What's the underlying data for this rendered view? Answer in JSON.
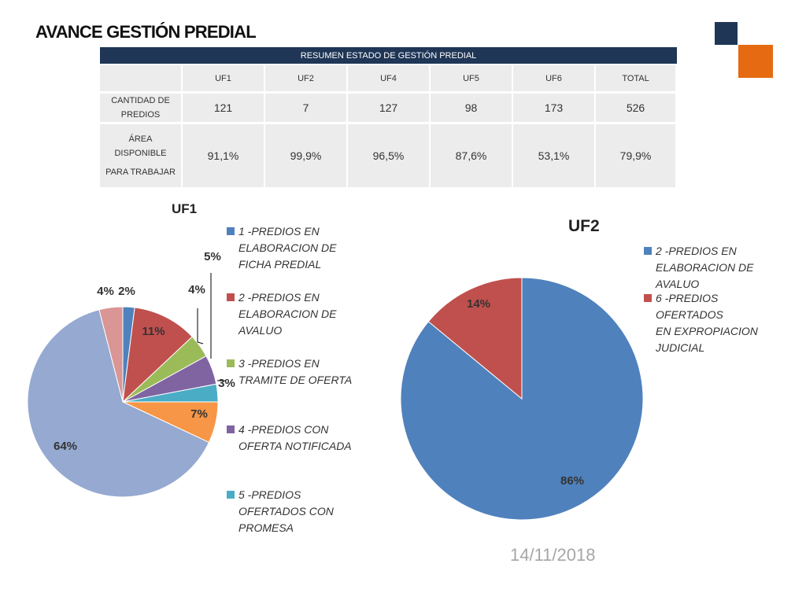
{
  "page": {
    "title": "AVANCE GESTIÓN PREDIAL",
    "date": "14/11/2018",
    "accent_colors": {
      "navy": "#1f3656",
      "orange": "#e56a12"
    }
  },
  "table": {
    "header": "RESUMEN ESTADO DE GESTIÓN PREDIAL",
    "columns": [
      "",
      "UF1",
      "UF2",
      "UF4",
      "UF5",
      "UF6",
      "TOTAL"
    ],
    "rows": [
      {
        "label_lines": [
          "CANTIDAD DE",
          "PREDIOS"
        ],
        "values": [
          "121",
          "7",
          "127",
          "98",
          "173",
          "526"
        ]
      },
      {
        "label_lines": [
          "ÁREA",
          "DISPONIBLE",
          "PARA TRABAJAR"
        ],
        "values": [
          "91,1%",
          "99,9%",
          "96,5%",
          "87,6%",
          "53,1%",
          "79,9%"
        ]
      }
    ]
  },
  "chart_data": [
    {
      "type": "pie",
      "title": "UF1",
      "slices": [
        {
          "value": 2,
          "label": "2%",
          "color": "#4f81bd"
        },
        {
          "value": 11,
          "label": "11%",
          "color": "#c0504d"
        },
        {
          "value": 4,
          "label": "4%",
          "color": "#9bbb59"
        },
        {
          "value": 5,
          "label": "5%",
          "color": "#8064a2"
        },
        {
          "value": 3,
          "label": "3%",
          "color": "#4bacc6"
        },
        {
          "value": 7,
          "label": "7%",
          "color": "#f79646"
        },
        {
          "value": 64,
          "label": "64%",
          "color": "#95a9d1"
        },
        {
          "value": 4,
          "label": "4%",
          "color": "#d99694"
        }
      ],
      "legend": [
        {
          "label_lines": [
            "1 -PREDIOS EN",
            "ELABORACION DE",
            "FICHA PREDIAL"
          ],
          "color": "#4f81bd"
        },
        {
          "label_lines": [
            "2 -PREDIOS EN",
            "ELABORACION DE",
            "AVALUO"
          ],
          "color": "#c0504d"
        },
        {
          "label_lines": [
            "3 -PREDIOS EN",
            "TRAMITE DE OFERTA"
          ],
          "color": "#9bbb59"
        },
        {
          "label_lines": [
            "4 -PREDIOS CON",
            "OFERTA NOTIFICADA"
          ],
          "color": "#8064a2"
        },
        {
          "label_lines": [
            "5 -PREDIOS",
            "OFERTADOS CON",
            "PROMESA"
          ],
          "color": "#4bacc6"
        }
      ]
    },
    {
      "type": "pie",
      "title": "UF2",
      "slices": [
        {
          "value": 86,
          "label": "86%",
          "color": "#4f81bd"
        },
        {
          "value": 14,
          "label": "14%",
          "color": "#c0504d"
        }
      ],
      "legend": [
        {
          "label_lines": [
            "2 -PREDIOS EN",
            "ELABORACION DE",
            "AVALUO"
          ],
          "color": "#4f81bd"
        },
        {
          "label_lines": [
            "6 -PREDIOS OFERTADOS",
            "EN EXPROPIACION",
            "JUDICIAL"
          ],
          "color": "#c0504d"
        }
      ]
    }
  ]
}
